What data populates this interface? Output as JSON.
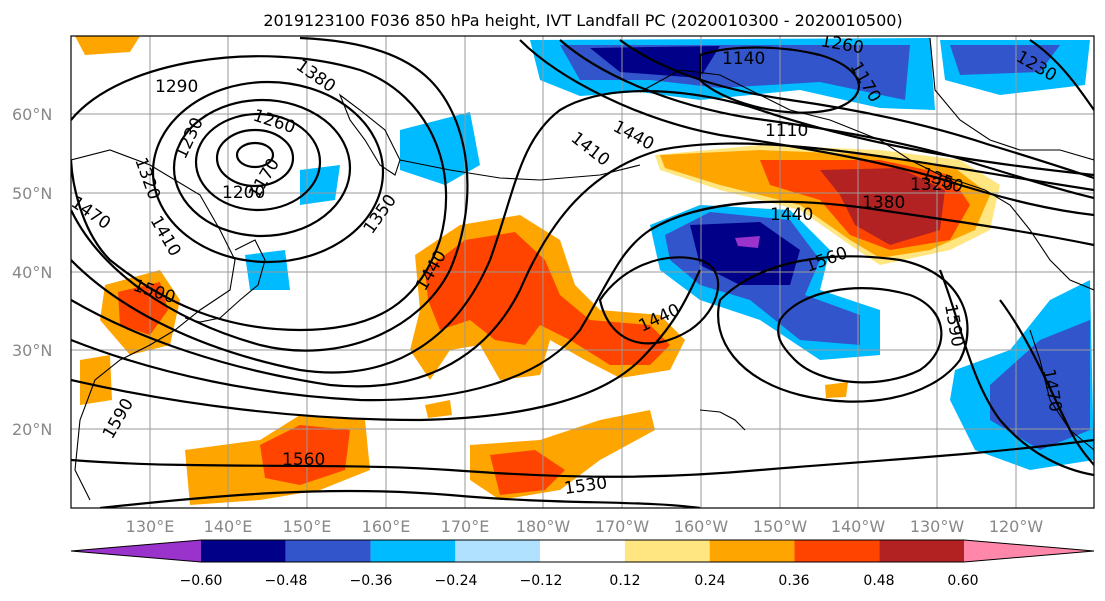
{
  "title": "2019123100 F036 850 hPa height, IVT Landfall PC (2020010300 - 2020010500)",
  "lat_labels": [
    "60°N",
    "50°N",
    "40°N",
    "30°N",
    "20°N"
  ],
  "lon_labels": [
    "130°E",
    "140°E",
    "150°E",
    "160°E",
    "170°E",
    "180°W",
    "170°W",
    "160°W",
    "150°W",
    "140°W",
    "130°W",
    "120°W"
  ],
  "colorbar": {
    "colors": [
      "#9933cc",
      "#000088",
      "#3355cc",
      "#00bbff",
      "#b0e2ff",
      "#ffffff",
      "#ffe680",
      "#ffa500",
      "#ff4400",
      "#b22222",
      "#ff88aa"
    ],
    "ticks": [
      "−0.60",
      "−0.48",
      "−0.36",
      "−0.24",
      "−0.12",
      "0.12",
      "0.24",
      "0.36",
      "0.48",
      "0.60"
    ]
  },
  "contour_labels": [
    "1290",
    "1380",
    "1260",
    "1230",
    "1320",
    "1200",
    "1170",
    "1470",
    "1410",
    "1500",
    "1350",
    "1440",
    "1410",
    "1140",
    "1110",
    "1260",
    "1170",
    "1230",
    "1440",
    "1380",
    "1320",
    "1350",
    "1440",
    "1560",
    "1590",
    "1440",
    "1560",
    "1530",
    "1590",
    "1470"
  ]
}
